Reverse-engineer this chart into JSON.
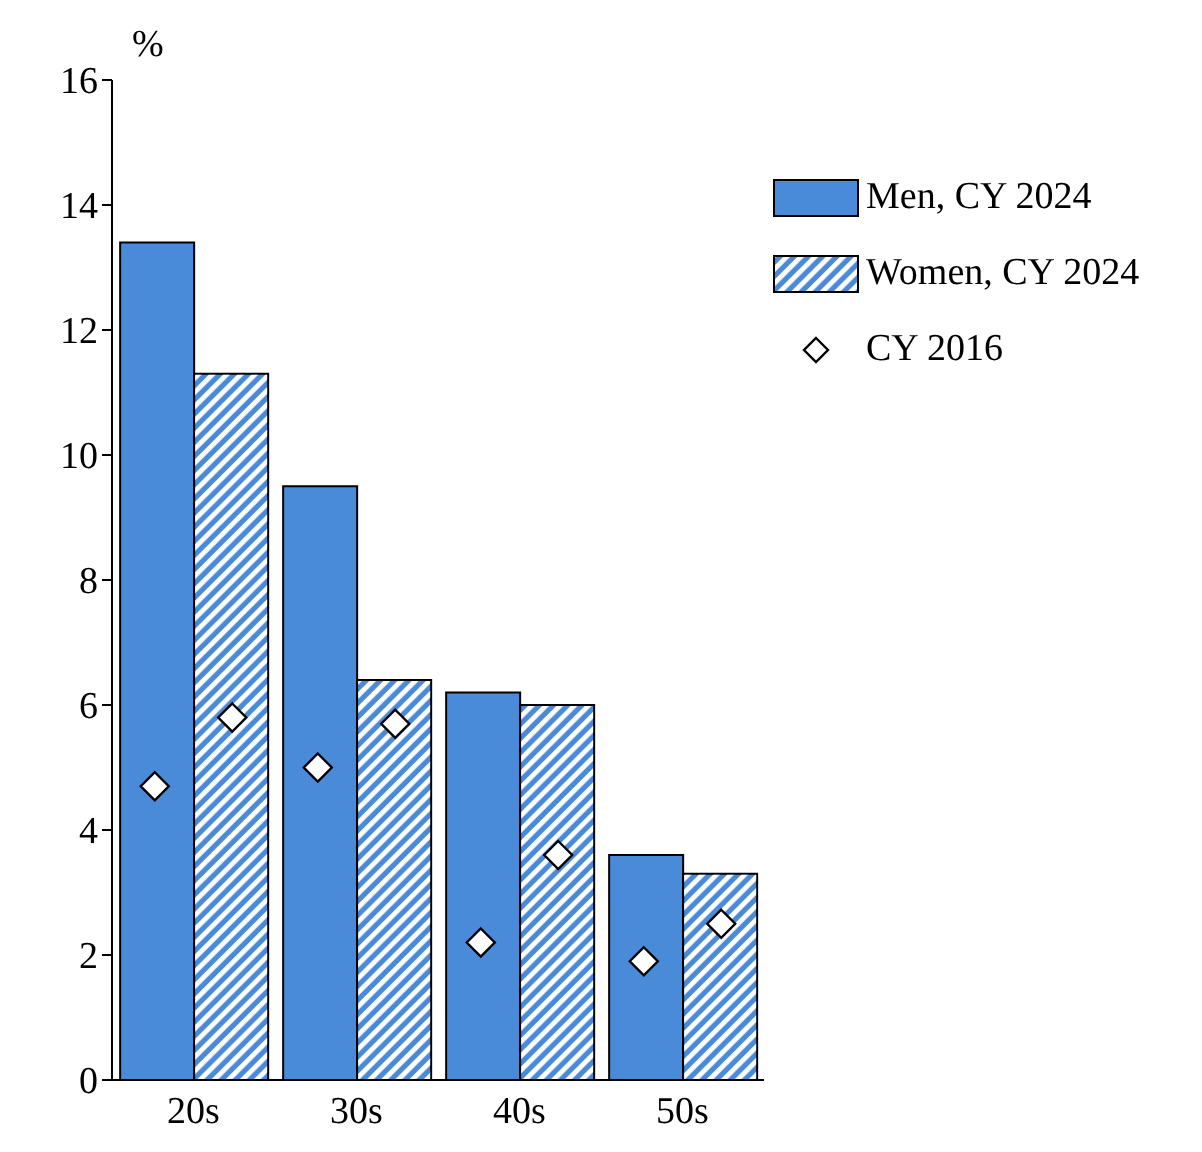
{
  "chart_data": {
    "type": "bar",
    "ylabel": "%",
    "categories": [
      "20s",
      "30s",
      "40s",
      "50s"
    ],
    "series": [
      {
        "name": "Men, CY 2024",
        "color": "#4a8bd9",
        "values": [
          13.4,
          9.5,
          6.2,
          3.6
        ]
      },
      {
        "name": "Women, CY 2024",
        "color": "#4a8bd9",
        "values": [
          11.3,
          6.4,
          6.0,
          3.3
        ]
      },
      {
        "name": "CY 2016",
        "type": "scatter",
        "color": "#ffffff",
        "marker": "diamond",
        "x": [
          "20s",
          "20s",
          "30s",
          "30s",
          "40s",
          "40s",
          "50s",
          "50s"
        ],
        "values": [
          4.7,
          5.8,
          5.0,
          5.7,
          2.2,
          3.6,
          1.9,
          2.5
        ]
      }
    ],
    "ylim": [
      0,
      16
    ],
    "yticks": [
      0,
      2,
      4,
      6,
      8,
      10,
      12,
      14,
      16
    ],
    "grid": false,
    "legend": "top right"
  }
}
